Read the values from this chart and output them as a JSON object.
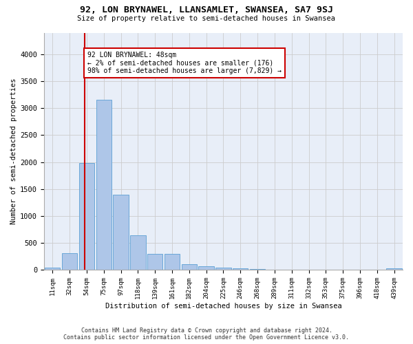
{
  "title": "92, LON BRYNAWEL, LLANSAMLET, SWANSEA, SA7 9SJ",
  "subtitle": "Size of property relative to semi-detached houses in Swansea",
  "xlabel": "Distribution of semi-detached houses by size in Swansea",
  "ylabel": "Number of semi-detached properties",
  "footer_line1": "Contains HM Land Registry data © Crown copyright and database right 2024.",
  "footer_line2": "Contains public sector information licensed under the Open Government Licence v3.0.",
  "annotation_text": "92 LON BRYNAWEL: 48sqm\n← 2% of semi-detached houses are smaller (176)\n98% of semi-detached houses are larger (7,829) →",
  "bar_labels": [
    "11sqm",
    "32sqm",
    "54sqm",
    "75sqm",
    "97sqm",
    "118sqm",
    "139sqm",
    "161sqm",
    "182sqm",
    "204sqm",
    "225sqm",
    "246sqm",
    "268sqm",
    "289sqm",
    "311sqm",
    "332sqm",
    "353sqm",
    "375sqm",
    "396sqm",
    "418sqm",
    "439sqm"
  ],
  "bar_heights": [
    50,
    310,
    1980,
    3160,
    1400,
    640,
    295,
    295,
    110,
    65,
    40,
    30,
    15,
    12,
    8,
    5,
    3,
    3,
    2,
    2,
    30
  ],
  "bar_color": "#aec6e8",
  "bar_edge_color": "#5a9fd4",
  "vline_color": "#cc0000",
  "annotation_box_color": "#cc0000",
  "grid_color": "#cccccc",
  "background_color": "#e8eef8",
  "ylim": [
    0,
    4400
  ],
  "yticks": [
    0,
    500,
    1000,
    1500,
    2000,
    2500,
    3000,
    3500,
    4000
  ]
}
